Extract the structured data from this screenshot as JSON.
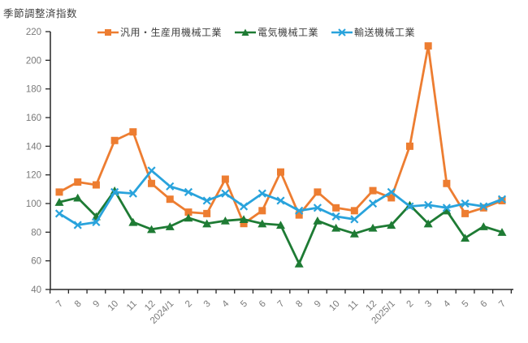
{
  "chart_data": {
    "type": "line",
    "title": "季節調整済指数",
    "categories": [
      "7",
      "8",
      "9",
      "10",
      "11",
      "12",
      "2024/1",
      "2",
      "3",
      "4",
      "5",
      "6",
      "7",
      "8",
      "9",
      "10",
      "11",
      "12",
      "2025/1",
      "2",
      "3",
      "4",
      "5",
      "6",
      "7"
    ],
    "series": [
      {
        "name": "汎用・生産用機械工業",
        "color": "#ED7D31",
        "marker": "square",
        "values": [
          108,
          115,
          113,
          144,
          150,
          114,
          103,
          94,
          93,
          117,
          86,
          95,
          122,
          92,
          108,
          97,
          95,
          109,
          104,
          140,
          210,
          114,
          93,
          97,
          102
        ]
      },
      {
        "name": "電気機械工業",
        "color": "#1E7B34",
        "marker": "triangle",
        "values": [
          101,
          104,
          91,
          109,
          87,
          82,
          84,
          90,
          86,
          88,
          89,
          86,
          85,
          58,
          88,
          83,
          79,
          83,
          85,
          99,
          86,
          95,
          76,
          84,
          80
        ]
      },
      {
        "name": "輸送機械工業",
        "color": "#29A3DC",
        "marker": "x",
        "values": [
          93,
          85,
          87,
          108,
          107,
          123,
          112,
          108,
          102,
          107,
          98,
          107,
          102,
          95,
          97,
          91,
          89,
          100,
          108,
          98,
          99,
          97,
          100,
          98,
          103
        ]
      }
    ],
    "ylabel": "",
    "xlabel": "",
    "ylim": [
      40,
      220
    ],
    "ytick_step": 20,
    "yticks": [
      40,
      60,
      80,
      100,
      120,
      140,
      160,
      180,
      200,
      220
    ],
    "grid": false,
    "legend_position": "top-center",
    "x_label_rotation_deg": -45
  },
  "colors": {
    "background": "#ffffff",
    "axis": "#262626",
    "tick_label": "#7a7a7a",
    "title_text": "#404040"
  }
}
